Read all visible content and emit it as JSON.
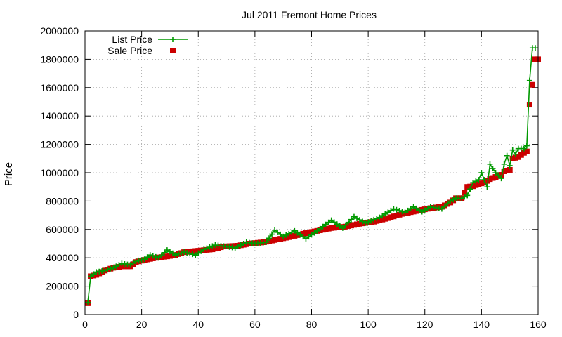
{
  "chart_data": {
    "type": "line",
    "title": "Jul 2011 Fremont Home Prices",
    "xlabel": "",
    "ylabel": "Price",
    "xlim": [
      0,
      160
    ],
    "ylim": [
      0,
      2000000
    ],
    "x_ticks": [
      "0",
      "20",
      "40",
      "60",
      "80",
      "100",
      "120",
      "140",
      "160"
    ],
    "y_ticks": [
      "0",
      "200000",
      "400000",
      "600000",
      "800000",
      "1000000",
      "1200000",
      "1400000",
      "1600000",
      "1800000",
      "2000000"
    ],
    "grid": true,
    "legend_position": "top-left",
    "series": [
      {
        "name": "List Price",
        "style": "linespoints",
        "marker": "plus",
        "color": "#009900",
        "anchors": [
          [
            1,
            85000
          ],
          [
            2,
            270000
          ],
          [
            4,
            300000
          ],
          [
            7,
            310000
          ],
          [
            10,
            330000
          ],
          [
            13,
            360000
          ],
          [
            16,
            350000
          ],
          [
            18,
            375000
          ],
          [
            21,
            390000
          ],
          [
            23,
            420000
          ],
          [
            26,
            400000
          ],
          [
            29,
            455000
          ],
          [
            32,
            420000
          ],
          [
            35,
            440000
          ],
          [
            39,
            420000
          ],
          [
            42,
            460000
          ],
          [
            46,
            490000
          ],
          [
            50,
            480000
          ],
          [
            53,
            470000
          ],
          [
            57,
            510000
          ],
          [
            60,
            500000
          ],
          [
            64,
            510000
          ],
          [
            67,
            595000
          ],
          [
            70,
            550000
          ],
          [
            74,
            590000
          ],
          [
            78,
            535000
          ],
          [
            82,
            590000
          ],
          [
            87,
            665000
          ],
          [
            91,
            610000
          ],
          [
            95,
            690000
          ],
          [
            99,
            645000
          ],
          [
            104,
            685000
          ],
          [
            109,
            745000
          ],
          [
            113,
            720000
          ],
          [
            116,
            760000
          ],
          [
            119,
            725000
          ],
          [
            122,
            760000
          ],
          [
            126,
            745000
          ],
          [
            129,
            800000
          ],
          [
            131,
            820000
          ],
          [
            133,
            820000
          ],
          [
            135,
            840000
          ],
          [
            137,
            930000
          ],
          [
            139,
            950000
          ],
          [
            140,
            1000000
          ],
          [
            142,
            900000
          ],
          [
            143,
            1060000
          ],
          [
            145,
            1000000
          ],
          [
            147,
            960000
          ],
          [
            148,
            1060000
          ],
          [
            149,
            1120000
          ],
          [
            150,
            1050000
          ],
          [
            151,
            1160000
          ],
          [
            152,
            1130000
          ],
          [
            153,
            1170000
          ],
          [
            155,
            1170000
          ],
          [
            156,
            1190000
          ],
          [
            157,
            1650000
          ],
          [
            158,
            1880000
          ],
          [
            159,
            1880000
          ]
        ]
      },
      {
        "name": "Sale Price",
        "style": "points",
        "marker": "square",
        "color": "#cc0000",
        "anchors": [
          [
            1,
            80000
          ],
          [
            2,
            270000
          ],
          [
            4,
            280000
          ],
          [
            7,
            310000
          ],
          [
            10,
            330000
          ],
          [
            13,
            340000
          ],
          [
            16,
            340000
          ],
          [
            18,
            370000
          ],
          [
            21,
            385000
          ],
          [
            25,
            400000
          ],
          [
            29,
            410000
          ],
          [
            32,
            420000
          ],
          [
            35,
            440000
          ],
          [
            40,
            450000
          ],
          [
            45,
            460000
          ],
          [
            49,
            480000
          ],
          [
            54,
            485000
          ],
          [
            58,
            500000
          ],
          [
            63,
            510000
          ],
          [
            68,
            530000
          ],
          [
            73,
            550000
          ],
          [
            77,
            570000
          ],
          [
            82,
            590000
          ],
          [
            87,
            610000
          ],
          [
            92,
            620000
          ],
          [
            97,
            640000
          ],
          [
            102,
            655000
          ],
          [
            107,
            680000
          ],
          [
            112,
            710000
          ],
          [
            117,
            730000
          ],
          [
            122,
            750000
          ],
          [
            126,
            760000
          ],
          [
            129,
            790000
          ],
          [
            131,
            820000
          ],
          [
            133,
            820000
          ],
          [
            135,
            900000
          ],
          [
            137,
            905000
          ],
          [
            139,
            920000
          ],
          [
            141,
            930000
          ],
          [
            143,
            955000
          ],
          [
            145,
            970000
          ],
          [
            147,
            985000
          ],
          [
            148,
            1010000
          ],
          [
            150,
            1020000
          ],
          [
            151,
            1100000
          ],
          [
            153,
            1110000
          ],
          [
            155,
            1140000
          ],
          [
            156,
            1150000
          ],
          [
            157,
            1480000
          ],
          [
            158,
            1620000
          ],
          [
            159,
            1800000
          ],
          [
            160,
            1800000
          ]
        ]
      }
    ]
  }
}
